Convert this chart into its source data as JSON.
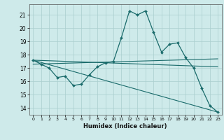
{
  "xlabel": "Humidex (Indice chaleur)",
  "bg_color": "#ceeaea",
  "grid_color": "#aacece",
  "line_color": "#1a6b6b",
  "xlim": [
    -0.5,
    23.5
  ],
  "ylim": [
    13.5,
    21.8
  ],
  "yticks": [
    14,
    15,
    16,
    17,
    18,
    19,
    20,
    21
  ],
  "xticks": [
    0,
    1,
    2,
    3,
    4,
    5,
    6,
    7,
    8,
    9,
    10,
    11,
    12,
    13,
    14,
    15,
    16,
    17,
    18,
    19,
    20,
    21,
    22,
    23
  ],
  "line1_x": [
    0,
    1,
    2,
    3,
    4,
    5,
    6,
    7,
    8,
    9,
    10,
    11,
    12,
    13,
    14,
    15,
    16,
    17,
    18,
    19,
    20,
    21,
    22,
    23
  ],
  "line1_y": [
    17.6,
    17.3,
    17.0,
    16.3,
    16.4,
    15.7,
    15.8,
    16.5,
    17.1,
    17.4,
    17.5,
    19.3,
    21.3,
    21.0,
    21.3,
    19.7,
    18.2,
    18.8,
    18.9,
    17.8,
    17.0,
    15.5,
    14.2,
    13.7
  ],
  "line2_x": [
    0,
    23
  ],
  "line2_y": [
    17.6,
    17.1
  ],
  "line3_x": [
    0,
    23
  ],
  "line3_y": [
    17.6,
    13.7
  ],
  "line4_x": [
    0,
    23
  ],
  "line4_y": [
    17.3,
    17.7
  ]
}
